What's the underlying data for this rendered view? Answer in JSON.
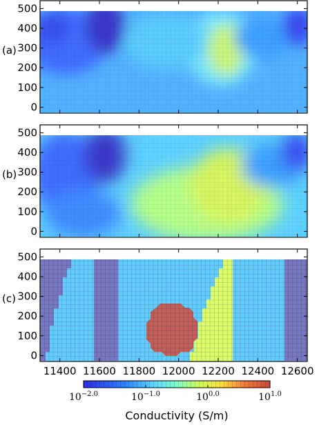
{
  "chart_data": {
    "type": "heatmap",
    "x_range": [
      11300,
      12650
    ],
    "y_range": [
      -30,
      540
    ],
    "panel_labels": [
      "(a)",
      "(b)",
      "(c)"
    ],
    "x_ticks": [
      "11400",
      "11600",
      "11800",
      "12000",
      "12200",
      "12400",
      "12600"
    ],
    "x_tick_values": [
      11400,
      11600,
      11800,
      12000,
      12200,
      12400,
      12600
    ],
    "y_ticks": [
      "500",
      "400",
      "300",
      "200",
      "100",
      "0"
    ],
    "y_tick_values": [
      500,
      400,
      300,
      200,
      100,
      0
    ],
    "colorbar": {
      "label": "Conductivity (S/m)",
      "scale": "log",
      "range": [
        0.01,
        10
      ],
      "tick_bases": [
        "10",
        "10",
        "10",
        "10"
      ],
      "tick_exponents": [
        "−2.0",
        "−1.0",
        "0.0",
        "1.0"
      ],
      "tick_log_values": [
        -2,
        -1,
        0,
        1
      ]
    },
    "true_model_panel_c": [
      {
        "name": "background",
        "conductivity": 0.1
      },
      {
        "name": "left resistive wedge",
        "conductivity": 0.02
      },
      {
        "name": "resistive column",
        "conductivity": 0.02,
        "x": [
          11580,
          11690
        ]
      },
      {
        "name": "right resistive block",
        "conductivity": 0.02,
        "x": [
          12530,
          12650
        ]
      },
      {
        "name": "conductive circle",
        "conductivity": 5,
        "center": [
          11970,
          150
        ],
        "radius": 95
      },
      {
        "name": "conductive dipping layer",
        "conductivity": 1
      }
    ],
    "colors": {
      "resistive": "#7878bf",
      "background": "#65cdfd",
      "conductive": "#c1605a",
      "dipping": "#ddfe6a"
    }
  }
}
